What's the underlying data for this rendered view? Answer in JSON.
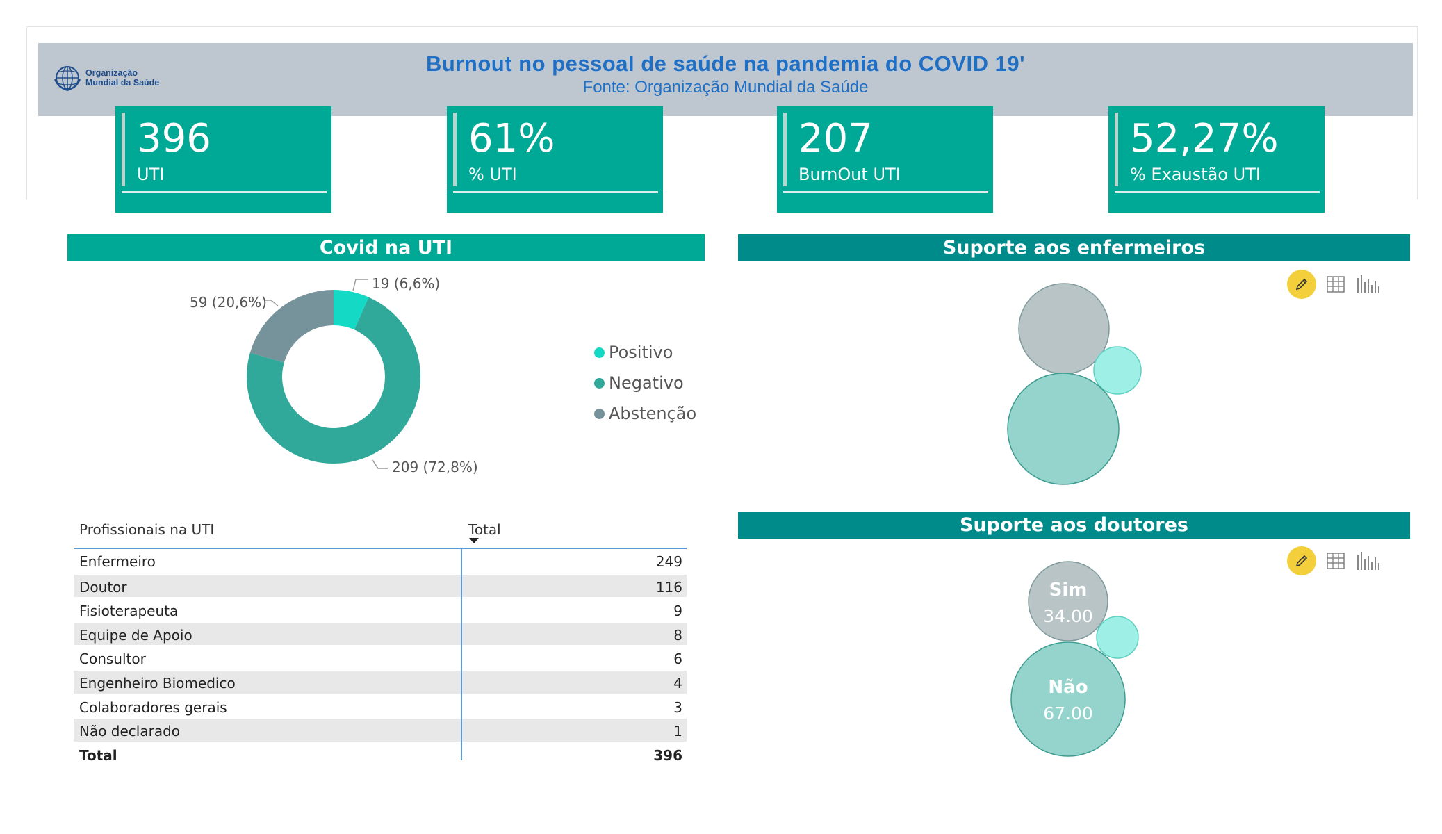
{
  "header": {
    "title": "Burnout no pessoal de saúde na pandemia do COVID 19'",
    "subtitle": "Fonte: Organização Mundial da Saúde",
    "logo_line1": "Organização",
    "logo_line2": "Mundial da Saúde"
  },
  "kpis": [
    {
      "value": "396",
      "label": "UTI"
    },
    {
      "value": "61%",
      "label": "% UTI"
    },
    {
      "value": "207",
      "label": "BurnOut UTI"
    },
    {
      "value": "52,27%",
      "label": "% Exaustão UTI"
    }
  ],
  "sections": {
    "covid": "Covid na UTI",
    "enfermeiros": "Suporte aos enfermeiros",
    "doutores": "Suporte aos doutores"
  },
  "colors": {
    "teal": "#00a896",
    "dark_teal": "#008b8b",
    "positivo": "#14dac5",
    "negativo": "#30a89a",
    "abstencao": "#76929a",
    "bubble_gray": "#b8c4c6",
    "bubble_teal": "#95d4cc",
    "bubble_light": "#9ef0e6"
  },
  "chart_data": [
    {
      "type": "pie",
      "donut": true,
      "categories": [
        "Positivo",
        "Negativo",
        "Abstenção"
      ],
      "values": [
        19,
        209,
        59
      ],
      "labels": [
        "19 (6,6%)",
        "209 (72,8%)",
        "59 (20,6%)"
      ],
      "legend": "right"
    },
    {
      "type": "scatter",
      "subtype": "bubble",
      "values": [
        40,
        60,
        10
      ]
    },
    {
      "type": "scatter",
      "subtype": "bubble",
      "categories": [
        "Sim",
        "Não",
        ""
      ],
      "values": [
        34.0,
        67.0,
        8.0
      ],
      "labels": [
        "34.00",
        "67.00",
        ""
      ]
    }
  ],
  "table": {
    "headers": [
      "Profissionais na UTI",
      "Total"
    ],
    "rows": [
      {
        "name": "Enfermeiro",
        "total": "249"
      },
      {
        "name": "Doutor",
        "total": "116"
      },
      {
        "name": "Fisioterapeuta",
        "total": "9"
      },
      {
        "name": "Equipe de Apoio",
        "total": "8"
      },
      {
        "name": "Consultor",
        "total": "6"
      },
      {
        "name": "Engenheiro Biomedico",
        "total": "4"
      },
      {
        "name": "Colaboradores gerais",
        "total": "3"
      },
      {
        "name": "Não declarado",
        "total": "1"
      }
    ],
    "total": {
      "name": "Total",
      "total": "396"
    }
  },
  "icons": [
    "edit-pencil-icon",
    "table-grid-icon",
    "bar-chart-icon"
  ]
}
